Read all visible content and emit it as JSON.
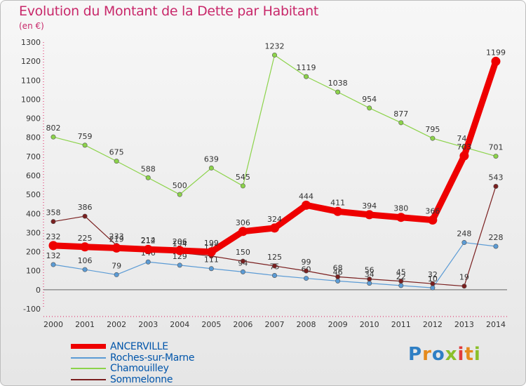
{
  "header": {
    "title": "Evolution du Montant de la Dette par Habitant",
    "subtitle": "(en €)"
  },
  "logo": {
    "text": "Proxiti",
    "letter_colors": [
      "#2f7fc4",
      "#e58a1c",
      "#2f7fc4",
      "#8bbf2a",
      "#e03c3c",
      "#e58a1c",
      "#8bbf2a"
    ]
  },
  "chart_data": {
    "type": "line",
    "title": "Evolution du Montant de la Dette par Habitant",
    "ylabel": "(en €)",
    "xlabel": "",
    "x": [
      "2000",
      "2001",
      "2002",
      "2003",
      "2004",
      "2005",
      "2006",
      "2007",
      "2008",
      "2009",
      "2010",
      "2011",
      "2012",
      "2013",
      "2014"
    ],
    "ylim": [
      -100,
      1300
    ],
    "yticks": [
      -100,
      0,
      100,
      200,
      300,
      400,
      500,
      600,
      700,
      800,
      900,
      1000,
      1100,
      1200,
      1300
    ],
    "grid": false,
    "legend_position": "bottom-left",
    "series": [
      {
        "name": "ANCERVILLE",
        "color": "#ee0000",
        "values": [
          232,
          225,
          219,
          212,
          206,
          199,
          306,
          324,
          444,
          411,
          394,
          380,
          366,
          703,
          1199
        ]
      },
      {
        "name": "Roches-sur-Marne",
        "color": "#5b9bd5",
        "values": [
          132,
          106,
          79,
          146,
          129,
          111,
          94,
          75,
          60,
          46,
          34,
          22,
          10,
          248,
          228
        ]
      },
      {
        "name": "Chamouilley",
        "color": "#8cd34a",
        "values": [
          802,
          759,
          675,
          588,
          500,
          639,
          545,
          1232,
          1119,
          1038,
          954,
          877,
          795,
          748,
          701
        ]
      },
      {
        "name": "Sommelonne",
        "color": "#7a1f1f",
        "values": [
          358,
          386,
          233,
          214,
          194,
          177,
          150,
          125,
          99,
          68,
          56,
          45,
          32,
          19,
          543
        ]
      }
    ]
  }
}
